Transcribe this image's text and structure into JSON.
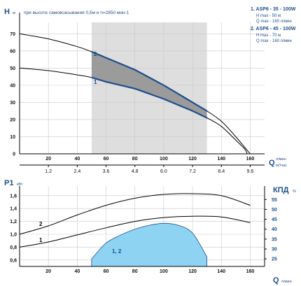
{
  "chart_data": [
    {
      "type": "line",
      "title": "при высоте самовсасывания 0,5м и n=2850 мин-1",
      "ylabel_main": "H",
      "ylabel_unit": "м",
      "xlabel_main": "Q",
      "xlabel_unit_top": "л/мин",
      "xlabel_unit_bottom": "м³/час",
      "ylim": [
        0,
        75
      ],
      "xlim": [
        0,
        170
      ],
      "yticks": [
        0,
        10,
        20,
        30,
        40,
        50,
        60,
        70
      ],
      "xticks": [
        20,
        40,
        60,
        80,
        100,
        120,
        140,
        160
      ],
      "xticks_secondary": [
        1.2,
        2.4,
        3.6,
        4.8,
        6.0,
        7.2,
        8.4,
        9.6
      ],
      "xticks_secondary_labels": [
        "1.2",
        "2.4",
        "3.6",
        "4.8",
        "6.0",
        "7.2",
        "8.4",
        "9.6"
      ],
      "operating_range": [
        50,
        130
      ],
      "colors": {
        "curve": "#000000",
        "band_curve": "#1f4e8c",
        "band_fill": "#8f8f8f",
        "range_fill": "#dedede"
      },
      "legend": [
        {
          "title": "1. ASP6 - 35 - 100W",
          "lines": [
            "H max - 50 м",
            "Q max - 160 л/мин"
          ]
        },
        {
          "title": "2. ASP6 - 45 - 100W",
          "lines": [
            "H max - 70 м",
            "Q max - 160 л/мин"
          ]
        }
      ],
      "series": [
        {
          "name": "2",
          "x": [
            0,
            20,
            40,
            50,
            60,
            80,
            100,
            120,
            130,
            140,
            150,
            156,
            160
          ],
          "y": [
            70,
            67,
            62.5,
            59.5,
            56,
            49,
            40,
            30,
            25,
            19,
            10,
            4,
            0
          ]
        },
        {
          "name": "1",
          "x": [
            0,
            20,
            40,
            50,
            60,
            80,
            100,
            120,
            130,
            140,
            150,
            156,
            158
          ],
          "y": [
            50,
            48.5,
            46,
            44.5,
            42,
            38,
            32,
            25,
            21,
            16,
            8,
            3,
            0
          ]
        }
      ]
    },
    {
      "type": "line",
      "ylabel_main": "P1",
      "ylabel_unit": "кВт",
      "ylabel_right_main": "КПД",
      "ylabel_right_unit": "%",
      "xlabel_main": "Q",
      "xlabel_unit": "л/мин",
      "ylim": [
        0.5,
        1.75
      ],
      "xlim": [
        0,
        170
      ],
      "yticks": [
        0.6,
        0.8,
        1.0,
        1.2,
        1.4,
        1.6
      ],
      "ytick_labels": [
        "0,6",
        "0,8",
        "1,0",
        "1,2",
        "1,4",
        "1,6"
      ],
      "yticks_right": [
        25,
        30,
        35,
        40,
        45,
        50,
        55
      ],
      "y2lim": [
        21.2,
        61.8
      ],
      "xticks": [
        20,
        40,
        60,
        80,
        100,
        120,
        140,
        160
      ],
      "series": [
        {
          "name": "2",
          "x": [
            0,
            20,
            40,
            60,
            80,
            100,
            120,
            140,
            160
          ],
          "y": [
            1.0,
            1.13,
            1.3,
            1.45,
            1.56,
            1.62,
            1.63,
            1.6,
            1.45
          ]
        },
        {
          "name": "1",
          "x": [
            0,
            20,
            40,
            60,
            80,
            100,
            120,
            140,
            160
          ],
          "y": [
            0.8,
            0.88,
            0.99,
            1.1,
            1.2,
            1.26,
            1.28,
            1.27,
            1.18
          ]
        },
        {
          "name": "1, 2",
          "type": "area",
          "x": [
            50,
            60,
            70,
            80,
            90,
            100,
            110,
            120,
            130
          ],
          "y": [
            25,
            33,
            37,
            40,
            42,
            43,
            42,
            38,
            26
          ]
        }
      ],
      "colors": {
        "curve": "#000000",
        "efficiency_fill": "#8fd3f2",
        "efficiency_line": "#1f4e8c"
      }
    }
  ]
}
